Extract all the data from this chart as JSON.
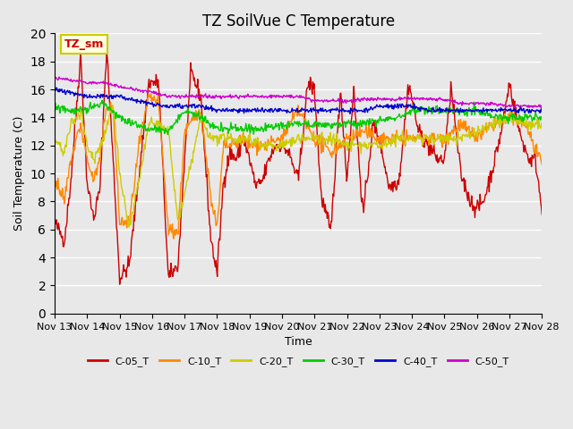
{
  "title": "TZ SoilVue C Temperature",
  "ylabel": "Soil Temperature (C)",
  "xlabel": "Time",
  "annotation": "TZ_sm",
  "ylim": [
    0,
    20
  ],
  "bg_color": "#e8e8e8",
  "plot_bg_color": "#e8e8e8",
  "grid_color": "white",
  "series_colors": {
    "C-05_T": "#cc0000",
    "C-10_T": "#ff8800",
    "C-20_T": "#cccc00",
    "C-30_T": "#00cc00",
    "C-40_T": "#0000cc",
    "C-50_T": "#cc00cc"
  },
  "x_tick_labels": [
    "Nov 13",
    "Nov 14",
    "Nov 15",
    "Nov 16",
    "Nov 17",
    "Nov 18",
    "Nov 19",
    "Nov 20",
    "Nov 21",
    "Nov 22",
    "Nov 23",
    "Nov 24",
    "Nov 25",
    "Nov 26",
    "Nov 27",
    "Nov 28"
  ],
  "num_points": 750
}
